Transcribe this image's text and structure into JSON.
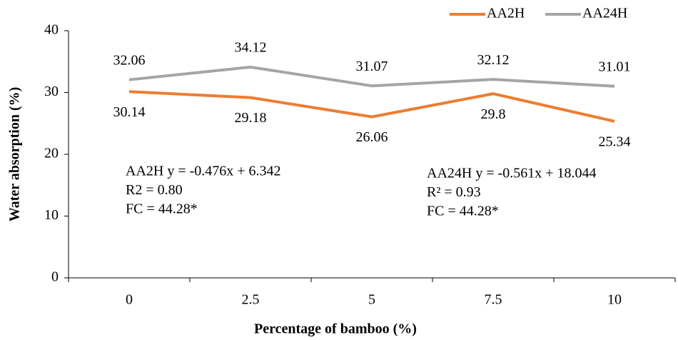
{
  "chart_data": {
    "type": "line",
    "x_label": "Percentage of bamboo (%)",
    "y_label": "Water absorption (%)",
    "categories": [
      "0",
      "2.5",
      "5",
      "7.5",
      "10"
    ],
    "series": [
      {
        "name": "AA2H",
        "color": "#ed7d31",
        "values": [
          30.14,
          29.18,
          26.06,
          29.8,
          25.34
        ],
        "label_position": "below"
      },
      {
        "name": "AA24H",
        "color": "#a5a5a5",
        "values": [
          32.06,
          34.12,
          31.07,
          32.12,
          31.01
        ],
        "label_position": "above"
      }
    ],
    "ylim": [
      0,
      40
    ],
    "yticks": [
      0,
      10,
      20,
      30,
      40
    ],
    "grid": false,
    "legend": "top-right",
    "annotations": [
      [
        "AA2H y = -0.476x + 6.342",
        "R2 = 0.80",
        "FC = 44.28*"
      ],
      [
        "AA24H y = -0.561x + 18.044",
        "R² = 0.93",
        "FC = 44.28*"
      ]
    ]
  }
}
